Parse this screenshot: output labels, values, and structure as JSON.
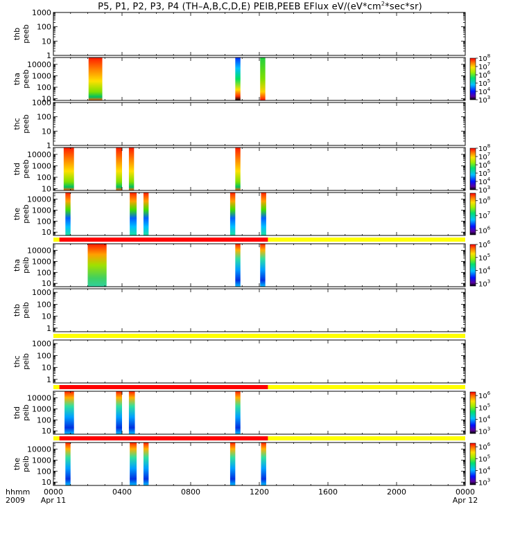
{
  "title": {
    "main": "P5, P1, P2, P3, P4 (TH–A,B,C,D,E) PEIB,PEEB EFlux eV/(eV*cm",
    "sup": "2",
    "tail": "*sec*sr)"
  },
  "x_axis": {
    "tick_labels": [
      "0000",
      "0400",
      "0800",
      "1200",
      "1600",
      "2000",
      "0000"
    ],
    "tick_hours": [
      0,
      4,
      8,
      12,
      16,
      20,
      24
    ],
    "sub_labels": [
      {
        "hour": 0,
        "text": "Apr 11"
      },
      {
        "hour": 24,
        "text": "Apr 12"
      }
    ],
    "left_label_1": "hhmm",
    "left_label_2": "2009",
    "range_hours": [
      0,
      24
    ]
  },
  "colors": {
    "mode_red": "#ff0000",
    "mode_yellow": "#ffff00"
  },
  "chart_data": [
    {
      "type": "heatmap",
      "name": "thb peeb",
      "panel_label_1": "thb",
      "panel_label_2": "peeb",
      "ylog": true,
      "ylim": [
        1,
        1000
      ],
      "y_ticks": [
        {
          "v": 1,
          "t": "1"
        },
        {
          "v": 10,
          "t": "10"
        },
        {
          "v": 100,
          "t": "100"
        },
        {
          "v": 1000,
          "t": "1000"
        }
      ],
      "colorbar": null,
      "blocks": [],
      "mode_bar_above": null
    },
    {
      "type": "heatmap",
      "name": "tha peeb",
      "panel_label_1": "tha",
      "panel_label_2": "peeb",
      "ylog": true,
      "ylim": [
        7,
        40000
      ],
      "y_ticks": [
        {
          "v": 10,
          "t": "10"
        },
        {
          "v": 100,
          "t": "100"
        },
        {
          "v": 1000,
          "t": "1000"
        },
        {
          "v": 10000,
          "t": "10000"
        }
      ],
      "colorbar": {
        "exps": [
          3,
          4,
          5,
          6,
          7,
          8
        ],
        "zlog_range": [
          3,
          8
        ]
      },
      "blocks": [
        {
          "t0": 2.05,
          "t1": 2.85,
          "style": "red_top"
        },
        {
          "t0": 10.6,
          "t1": 10.9,
          "style": "blue_top"
        },
        {
          "t0": 12.05,
          "t1": 12.35,
          "style": "green_red"
        }
      ],
      "mode_bar_above": null
    },
    {
      "type": "heatmap",
      "name": "thc peeb",
      "panel_label_1": "thc",
      "panel_label_2": "peeb",
      "ylog": true,
      "ylim": [
        1,
        1000
      ],
      "y_ticks": [
        {
          "v": 1,
          "t": "1"
        },
        {
          "v": 10,
          "t": "10"
        },
        {
          "v": 100,
          "t": "100"
        },
        {
          "v": 1000,
          "t": "1000"
        }
      ],
      "colorbar": null,
      "blocks": [],
      "mode_bar_above": null
    },
    {
      "type": "heatmap",
      "name": "thd peeb",
      "panel_label_1": "thd",
      "panel_label_2": "peeb",
      "ylog": true,
      "ylim": [
        7,
        40000
      ],
      "y_ticks": [
        {
          "v": 10,
          "t": "10"
        },
        {
          "v": 100,
          "t": "100"
        },
        {
          "v": 1000,
          "t": "1000"
        },
        {
          "v": 10000,
          "t": "10000"
        }
      ],
      "colorbar": {
        "exps": [
          3,
          4,
          5,
          6,
          7,
          8
        ],
        "zlog_range": [
          3,
          8
        ]
      },
      "blocks": [
        {
          "t0": 0.6,
          "t1": 1.2,
          "style": "red_top"
        },
        {
          "t0": 3.65,
          "t1": 4.0,
          "style": "red_top"
        },
        {
          "t0": 4.4,
          "t1": 4.7,
          "style": "red_top"
        },
        {
          "t0": 10.6,
          "t1": 10.9,
          "style": "red_top"
        }
      ],
      "mode_bar_above": null
    },
    {
      "type": "heatmap",
      "name": "the peeb",
      "panel_label_1": "the",
      "panel_label_2": "peeb",
      "ylog": true,
      "ylim": [
        5,
        40000
      ],
      "y_ticks": [
        {
          "v": 10,
          "t": "10"
        },
        {
          "v": 100,
          "t": "100"
        },
        {
          "v": 1000,
          "t": "1000"
        },
        {
          "v": 10000,
          "t": "10000"
        }
      ],
      "colorbar": {
        "exps": [
          6,
          7,
          8
        ],
        "zlog_range": [
          5.7,
          8.5
        ]
      },
      "blocks": [
        {
          "t0": 0.7,
          "t1": 1.0,
          "style": "red_blue"
        },
        {
          "t0": 4.45,
          "t1": 4.85,
          "style": "red_blue"
        },
        {
          "t0": 5.25,
          "t1": 5.55,
          "style": "red_blue"
        },
        {
          "t0": 10.3,
          "t1": 10.6,
          "style": "red_blue"
        },
        {
          "t0": 12.1,
          "t1": 12.4,
          "style": "red_blue"
        }
      ],
      "mode_bar_above": null
    },
    {
      "type": "heatmap",
      "name": "tha peib",
      "panel_label_1": "tha",
      "panel_label_2": "peib",
      "ylog": true,
      "ylim": [
        5,
        40000
      ],
      "y_ticks": [
        {
          "v": 10,
          "t": "10"
        },
        {
          "v": 100,
          "t": "100"
        },
        {
          "v": 1000,
          "t": "1000"
        },
        {
          "v": 10000,
          "t": "10000"
        }
      ],
      "colorbar": {
        "exps": [
          3,
          4,
          5,
          6
        ],
        "zlog_range": [
          2.8,
          6
        ]
      },
      "blocks": [
        {
          "t0": 2.0,
          "t1": 3.1,
          "style": "ion_green"
        },
        {
          "t0": 10.6,
          "t1": 10.9,
          "style": "ion_blue"
        },
        {
          "t0": 12.05,
          "t1": 12.35,
          "style": "ion_blue"
        }
      ],
      "mode_bar_above": {
        "red_t0": 0.35,
        "red_t1": 12.5
      }
    },
    {
      "type": "heatmap",
      "name": "thb peib",
      "panel_label_1": "thb",
      "panel_label_2": "peib",
      "ylog": true,
      "ylim": [
        0.5,
        2000
      ],
      "y_ticks": [
        {
          "v": 1,
          "t": "1"
        },
        {
          "v": 10,
          "t": "10"
        },
        {
          "v": 100,
          "t": "100"
        },
        {
          "v": 1000,
          "t": "1000"
        }
      ],
      "colorbar": null,
      "blocks": [],
      "mode_bar_above": null
    },
    {
      "type": "heatmap",
      "name": "thc peib",
      "panel_label_1": "thc",
      "panel_label_2": "peib",
      "ylog": true,
      "ylim": [
        0.5,
        2000
      ],
      "y_ticks": [
        {
          "v": 1,
          "t": "1"
        },
        {
          "v": 10,
          "t": "10"
        },
        {
          "v": 100,
          "t": "100"
        },
        {
          "v": 1000,
          "t": "1000"
        }
      ],
      "colorbar": null,
      "blocks": [],
      "mode_bar_above": {
        "red_t0": null,
        "red_t1": null
      }
    },
    {
      "type": "heatmap",
      "name": "thd peib",
      "panel_label_1": "thd",
      "panel_label_2": "peib",
      "ylog": true,
      "ylim": [
        5,
        40000
      ],
      "y_ticks": [
        {
          "v": 10,
          "t": "10"
        },
        {
          "v": 100,
          "t": "100"
        },
        {
          "v": 1000,
          "t": "1000"
        },
        {
          "v": 10000,
          "t": "10000"
        }
      ],
      "colorbar": {
        "exps": [
          3,
          4,
          5,
          6
        ],
        "zlog_range": [
          2.8,
          6.3
        ]
      },
      "blocks": [
        {
          "t0": 0.65,
          "t1": 1.2,
          "style": "ion_blue"
        },
        {
          "t0": 3.65,
          "t1": 4.0,
          "style": "ion_blue"
        },
        {
          "t0": 4.4,
          "t1": 4.75,
          "style": "ion_blue"
        },
        {
          "t0": 10.6,
          "t1": 10.9,
          "style": "ion_blue"
        }
      ],
      "mode_bar_above": {
        "red_t0": 0.35,
        "red_t1": 12.5
      }
    },
    {
      "type": "heatmap",
      "name": "the peib",
      "panel_label_1": "the",
      "panel_label_2": "peib",
      "ylog": true,
      "ylim": [
        5,
        40000
      ],
      "y_ticks": [
        {
          "v": 10,
          "t": "10"
        },
        {
          "v": 100,
          "t": "100"
        },
        {
          "v": 1000,
          "t": "1000"
        },
        {
          "v": 10000,
          "t": "10000"
        }
      ],
      "colorbar": {
        "exps": [
          3,
          4,
          5,
          6
        ],
        "zlog_range": [
          2.8,
          6.3
        ]
      },
      "blocks": [
        {
          "t0": 0.7,
          "t1": 1.0,
          "style": "ion_blue"
        },
        {
          "t0": 4.45,
          "t1": 4.85,
          "style": "ion_blue"
        },
        {
          "t0": 5.25,
          "t1": 5.55,
          "style": "ion_blue"
        },
        {
          "t0": 10.3,
          "t1": 10.6,
          "style": "ion_blue"
        },
        {
          "t0": 12.1,
          "t1": 12.4,
          "style": "ion_blue"
        }
      ],
      "mode_bar_above": {
        "red_t0": 0.35,
        "red_t1": 12.5
      }
    }
  ]
}
